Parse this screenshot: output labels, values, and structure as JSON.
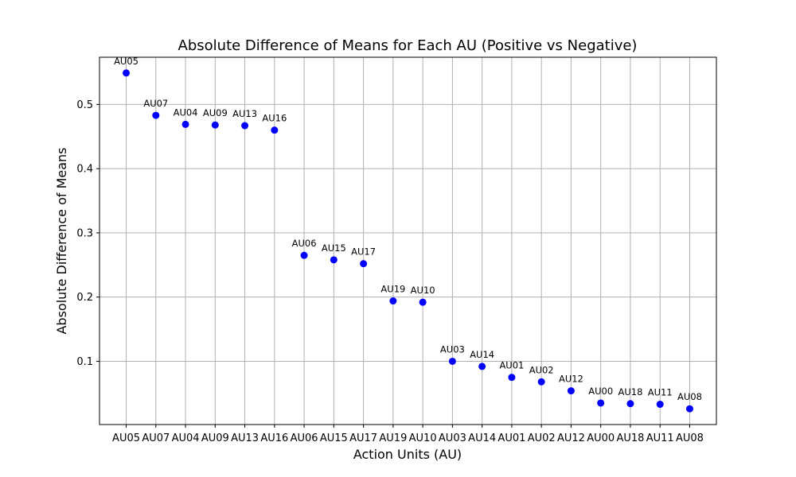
{
  "chart_data": {
    "type": "scatter",
    "title": "Absolute Difference of Means for Each AU (Positive vs Negative)",
    "xlabel": "Action Units (AU)",
    "ylabel": "Absolute Difference of Means",
    "categories": [
      "AU05",
      "AU07",
      "AU04",
      "AU09",
      "AU13",
      "AU16",
      "AU06",
      "AU15",
      "AU17",
      "AU19",
      "AU10",
      "AU03",
      "AU14",
      "AU01",
      "AU02",
      "AU12",
      "AU00",
      "AU18",
      "AU11",
      "AU08"
    ],
    "values": [
      0.549,
      0.483,
      0.469,
      0.468,
      0.467,
      0.46,
      0.265,
      0.258,
      0.252,
      0.194,
      0.192,
      0.1,
      0.092,
      0.075,
      0.068,
      0.054,
      0.035,
      0.034,
      0.033,
      0.026
    ],
    "point_labels": [
      "AU05",
      "AU07",
      "AU04",
      "AU09",
      "AU13",
      "AU16",
      "AU06",
      "AU15",
      "AU17",
      "AU19",
      "AU10",
      "AU03",
      "AU14",
      "AU01",
      "AU02",
      "AU12",
      "AU00",
      "AU18",
      "AU11",
      "AU08"
    ],
    "ylim": [
      0.0015,
      0.5735
    ],
    "yticks": [
      0.1,
      0.2,
      0.3,
      0.4,
      0.5
    ],
    "ytick_labels": [
      "0.1",
      "0.2",
      "0.3",
      "0.4",
      "0.5"
    ],
    "grid": true,
    "color": "#0000ff"
  }
}
